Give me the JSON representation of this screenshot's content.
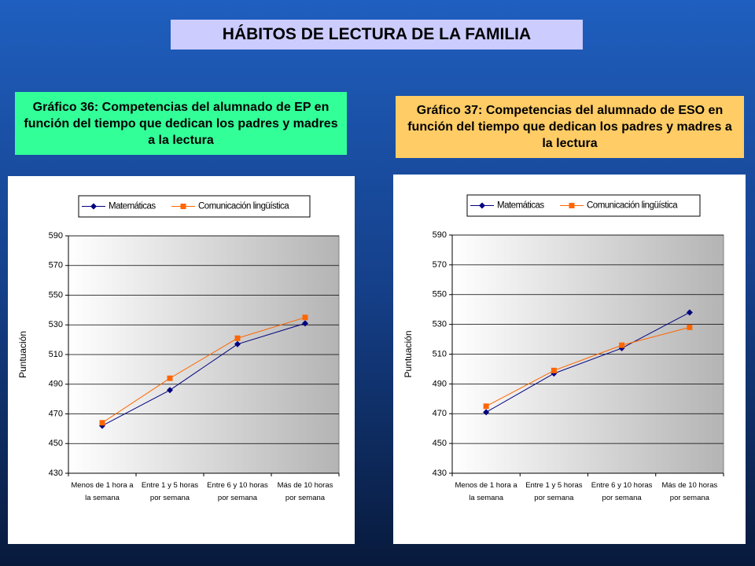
{
  "title": "HÁBITOS DE LECTURA DE LA FAMILIA",
  "chart_data": [
    {
      "type": "line",
      "title": "Gráfico 36: Competencias del alumnado de EP en función del tiempo que dedican los padres y madres a la lectura",
      "y_label": "Puntuación",
      "categories": [
        "Menos de 1 hora a\nla semana",
        "Entre 1 y 5 horas\npor semana",
        "Entre 6 y 10 horas\npor semana",
        "Más de 10 horas\npor semana"
      ],
      "series": [
        {
          "name": "Matemáticas",
          "color": "#000080",
          "marker": "diamond",
          "values": [
            462,
            486,
            517,
            531
          ]
        },
        {
          "name": "Comunicación lingüística",
          "color": "#ff6600",
          "marker": "square",
          "values": [
            464,
            494,
            521,
            535
          ]
        }
      ],
      "ylim": [
        430,
        590
      ],
      "yticks": [
        430,
        450,
        470,
        490,
        510,
        530,
        550,
        570,
        590
      ],
      "grid": true,
      "legend_position": "top"
    },
    {
      "type": "line",
      "title": "Gráfico 37: Competencias del alumnado de ESO en función del tiempo que dedican los padres y madres a la lectura",
      "y_label": "Puntuación",
      "categories": [
        "Menos de 1 hora a\nla semana",
        "Entre 1 y 5 horas\npor semana",
        "Entre 6 y 10 horas\npor semana",
        "Más de 10 horas\npor semana"
      ],
      "series": [
        {
          "name": "Matemáticas",
          "color": "#000080",
          "marker": "diamond",
          "values": [
            471,
            497,
            514,
            538
          ]
        },
        {
          "name": "Comunicación lingüística",
          "color": "#ff6600",
          "marker": "square",
          "values": [
            475,
            499,
            516,
            528
          ]
        }
      ],
      "ylim": [
        430,
        590
      ],
      "yticks": [
        430,
        450,
        470,
        490,
        510,
        530,
        550,
        570,
        590
      ],
      "grid": true,
      "legend_position": "top"
    }
  ]
}
